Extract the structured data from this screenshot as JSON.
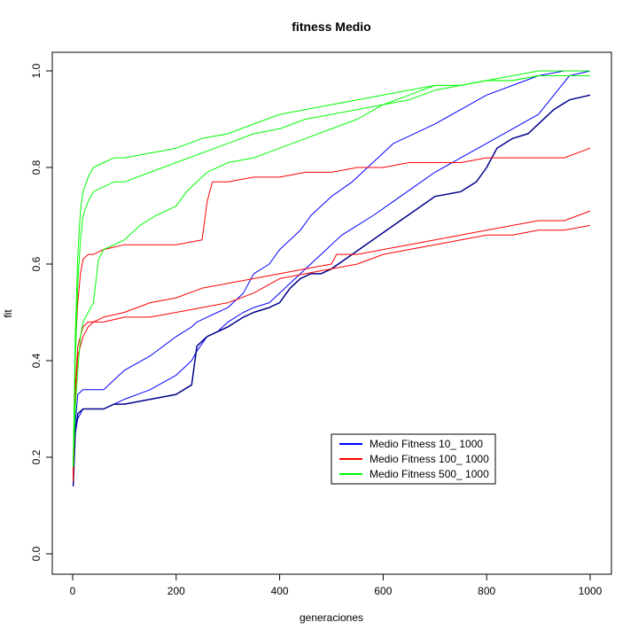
{
  "chart_data": {
    "type": "line",
    "title": "fitness Medio",
    "xlabel": "generaciones",
    "ylabel": "fit",
    "xlim": [
      0,
      1000
    ],
    "ylim": [
      0.0,
      1.0
    ],
    "xticks": [
      "0",
      "200",
      "400",
      "600",
      "800",
      "1000"
    ],
    "yticks": [
      "0.0",
      "0.2",
      "0.4",
      "0.6",
      "0.8",
      "1.0"
    ],
    "legend": {
      "placement": "bottom-right",
      "entries": [
        {
          "label": "Medio Fitness 10_ 1000",
          "color": "#0000ff"
        },
        {
          "label": "Medio Fitness 100_ 1000",
          "color": "#ff0000"
        },
        {
          "label": "Medio Fitness 500_ 1000",
          "color": "#00ff00"
        }
      ]
    },
    "series": [
      {
        "color": "#0000ff",
        "group": "10",
        "width": 1,
        "x": [
          1,
          5,
          10,
          20,
          40,
          60,
          80,
          100,
          150,
          200,
          230,
          240,
          260,
          280,
          300,
          330,
          350,
          380,
          400,
          420,
          440,
          460,
          490,
          520,
          550,
          580,
          620,
          660,
          700,
          750,
          800,
          850,
          900,
          930,
          960,
          1000
        ],
        "y": [
          0.16,
          0.25,
          0.28,
          0.3,
          0.3,
          0.3,
          0.31,
          0.32,
          0.34,
          0.37,
          0.4,
          0.42,
          0.45,
          0.46,
          0.48,
          0.5,
          0.51,
          0.52,
          0.54,
          0.56,
          0.58,
          0.6,
          0.63,
          0.66,
          0.68,
          0.7,
          0.73,
          0.76,
          0.79,
          0.82,
          0.85,
          0.88,
          0.91,
          0.95,
          0.99,
          1.0
        ]
      },
      {
        "color": "#0000ff",
        "group": "10",
        "width": 1,
        "x": [
          1,
          5,
          10,
          20,
          40,
          60,
          80,
          100,
          150,
          200,
          230,
          240,
          260,
          280,
          300,
          330,
          350,
          380,
          400,
          420,
          440,
          460,
          480,
          500,
          540,
          580,
          620,
          660,
          700,
          750,
          800,
          850,
          900,
          950,
          1000
        ],
        "y": [
          0.16,
          0.27,
          0.33,
          0.34,
          0.34,
          0.34,
          0.36,
          0.38,
          0.41,
          0.45,
          0.47,
          0.48,
          0.49,
          0.5,
          0.51,
          0.54,
          0.58,
          0.6,
          0.63,
          0.65,
          0.67,
          0.7,
          0.72,
          0.74,
          0.77,
          0.81,
          0.85,
          0.87,
          0.89,
          0.92,
          0.95,
          0.97,
          0.99,
          1.0,
          1.0
        ]
      },
      {
        "color": "#00008b",
        "group": "10",
        "width": 1.5,
        "x": [
          1,
          5,
          10,
          20,
          40,
          60,
          80,
          100,
          150,
          200,
          230,
          240,
          260,
          280,
          300,
          330,
          350,
          380,
          400,
          420,
          440,
          460,
          480,
          500,
          540,
          580,
          620,
          660,
          700,
          750,
          780,
          800,
          820,
          850,
          880,
          900,
          930,
          960,
          1000
        ],
        "y": [
          0.14,
          0.25,
          0.29,
          0.3,
          0.3,
          0.3,
          0.31,
          0.31,
          0.32,
          0.33,
          0.35,
          0.43,
          0.45,
          0.46,
          0.47,
          0.49,
          0.5,
          0.51,
          0.52,
          0.55,
          0.57,
          0.58,
          0.58,
          0.59,
          0.62,
          0.65,
          0.68,
          0.71,
          0.74,
          0.75,
          0.77,
          0.8,
          0.84,
          0.86,
          0.87,
          0.89,
          0.92,
          0.94,
          0.95
        ]
      },
      {
        "color": "#ff0000",
        "group": "100",
        "width": 1,
        "x": [
          1,
          5,
          10,
          15,
          20,
          30,
          40,
          60,
          100,
          150,
          200,
          250,
          260,
          270,
          300,
          350,
          400,
          450,
          500,
          550,
          600,
          650,
          700,
          750,
          800,
          850,
          900,
          950,
          1000
        ],
        "y": [
          0.16,
          0.42,
          0.52,
          0.58,
          0.61,
          0.62,
          0.62,
          0.63,
          0.64,
          0.64,
          0.64,
          0.65,
          0.73,
          0.77,
          0.77,
          0.78,
          0.78,
          0.79,
          0.79,
          0.8,
          0.8,
          0.81,
          0.81,
          0.81,
          0.82,
          0.82,
          0.82,
          0.82,
          0.84
        ]
      },
      {
        "color": "#ff0000",
        "group": "100",
        "width": 1,
        "x": [
          1,
          5,
          10,
          20,
          30,
          40,
          60,
          100,
          150,
          200,
          250,
          300,
          350,
          400,
          450,
          500,
          510,
          550,
          600,
          650,
          700,
          750,
          800,
          850,
          900,
          950,
          1000
        ],
        "y": [
          0.16,
          0.34,
          0.43,
          0.47,
          0.48,
          0.48,
          0.49,
          0.5,
          0.52,
          0.53,
          0.55,
          0.56,
          0.57,
          0.58,
          0.59,
          0.6,
          0.62,
          0.62,
          0.63,
          0.64,
          0.65,
          0.66,
          0.67,
          0.68,
          0.69,
          0.69,
          0.71
        ]
      },
      {
        "color": "#ff0000",
        "group": "100",
        "width": 1,
        "x": [
          1,
          5,
          10,
          20,
          30,
          40,
          60,
          100,
          150,
          200,
          250,
          300,
          350,
          400,
          450,
          500,
          550,
          600,
          650,
          700,
          750,
          800,
          850,
          900,
          950,
          1000
        ],
        "y": [
          0.15,
          0.33,
          0.41,
          0.45,
          0.47,
          0.48,
          0.48,
          0.49,
          0.49,
          0.5,
          0.51,
          0.52,
          0.54,
          0.57,
          0.58,
          0.59,
          0.6,
          0.62,
          0.63,
          0.64,
          0.65,
          0.66,
          0.66,
          0.67,
          0.67,
          0.68
        ]
      },
      {
        "color": "#00ff00",
        "group": "500",
        "width": 1,
        "x": [
          1,
          5,
          10,
          15,
          20,
          30,
          40,
          60,
          80,
          100,
          150,
          200,
          250,
          300,
          350,
          400,
          450,
          500,
          550,
          600,
          650,
          700,
          750,
          800,
          850,
          900,
          950,
          1000
        ],
        "y": [
          0.18,
          0.45,
          0.62,
          0.71,
          0.75,
          0.78,
          0.8,
          0.81,
          0.82,
          0.82,
          0.83,
          0.84,
          0.86,
          0.87,
          0.89,
          0.91,
          0.92,
          0.93,
          0.94,
          0.95,
          0.96,
          0.97,
          0.97,
          0.98,
          0.98,
          0.99,
          0.99,
          0.99
        ]
      },
      {
        "color": "#00ff00",
        "group": "500",
        "width": 1,
        "x": [
          1,
          5,
          10,
          15,
          20,
          30,
          40,
          60,
          80,
          100,
          150,
          200,
          250,
          300,
          350,
          400,
          450,
          500,
          550,
          600,
          650,
          700,
          750,
          800,
          850,
          900,
          950,
          1000
        ],
        "y": [
          0.18,
          0.4,
          0.56,
          0.65,
          0.7,
          0.73,
          0.75,
          0.76,
          0.77,
          0.77,
          0.79,
          0.81,
          0.83,
          0.85,
          0.87,
          0.88,
          0.9,
          0.91,
          0.92,
          0.93,
          0.94,
          0.96,
          0.97,
          0.98,
          0.99,
          1.0,
          1.0,
          1.0
        ]
      },
      {
        "color": "#00ff00",
        "group": "500",
        "width": 1,
        "x": [
          1,
          5,
          10,
          15,
          20,
          30,
          40,
          50,
          60,
          80,
          100,
          130,
          160,
          200,
          220,
          240,
          260,
          300,
          350,
          400,
          450,
          500,
          550,
          600,
          650,
          700,
          750,
          800,
          850,
          900,
          950,
          1000
        ],
        "y": [
          0.18,
          0.3,
          0.38,
          0.45,
          0.48,
          0.5,
          0.52,
          0.61,
          0.63,
          0.64,
          0.65,
          0.68,
          0.7,
          0.72,
          0.75,
          0.77,
          0.79,
          0.81,
          0.82,
          0.84,
          0.86,
          0.88,
          0.9,
          0.93,
          0.95,
          0.97,
          0.97,
          0.98,
          0.98,
          0.99,
          0.99,
          0.99
        ]
      }
    ]
  }
}
